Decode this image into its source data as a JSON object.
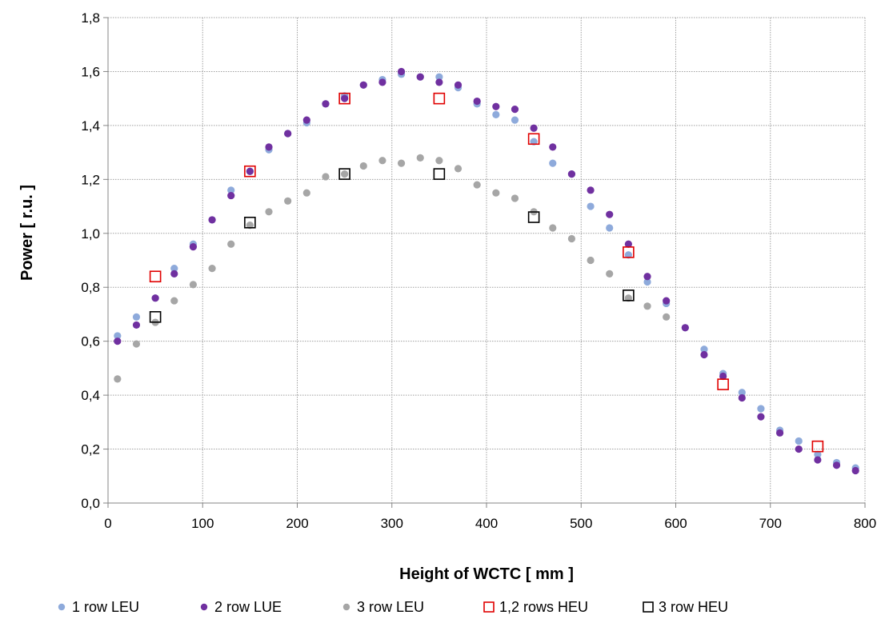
{
  "chart_data": {
    "type": "scatter",
    "title": "",
    "xlabel": "Height of WCTC [ mm ]",
    "ylabel": "Power  [ r.u. ]",
    "xlim": [
      0,
      800
    ],
    "ylim": [
      0,
      1.8
    ],
    "x_ticks": [
      "0",
      "100",
      "200",
      "300",
      "400",
      "500",
      "600",
      "700",
      "800"
    ],
    "y_ticks": [
      "0,0",
      "0,2",
      "0,4",
      "0,6",
      "0,8",
      "1,0",
      "1,2",
      "1,4",
      "1,6",
      "1,8"
    ],
    "grid": true,
    "legend_position": "bottom",
    "series": [
      {
        "name": "1 row LEU",
        "marker": "circle",
        "color": "#8eaadb",
        "x": [
          10,
          30,
          50,
          70,
          90,
          110,
          130,
          150,
          170,
          190,
          210,
          230,
          250,
          270,
          290,
          310,
          330,
          350,
          370,
          390,
          410,
          430,
          450,
          470,
          490,
          510,
          530,
          550,
          570,
          590,
          610,
          630,
          650,
          670,
          690,
          710,
          730,
          750,
          770,
          790
        ],
        "y": [
          0.62,
          0.69,
          0.76,
          0.87,
          0.96,
          1.05,
          1.16,
          1.23,
          1.31,
          1.37,
          1.41,
          1.48,
          1.51,
          1.55,
          1.57,
          1.59,
          1.58,
          1.58,
          1.54,
          1.48,
          1.44,
          1.42,
          1.34,
          1.26,
          1.22,
          1.1,
          1.02,
          0.92,
          0.82,
          0.74,
          0.65,
          0.57,
          0.48,
          0.41,
          0.35,
          0.27,
          0.23,
          0.18,
          0.15,
          0.13
        ]
      },
      {
        "name": "2 row LUE",
        "marker": "circle",
        "color": "#7030a0",
        "x": [
          10,
          30,
          50,
          70,
          90,
          110,
          130,
          150,
          170,
          190,
          210,
          230,
          250,
          270,
          290,
          310,
          330,
          350,
          370,
          390,
          410,
          430,
          450,
          470,
          490,
          510,
          530,
          550,
          570,
          590,
          610,
          630,
          650,
          670,
          690,
          710,
          730,
          750,
          770,
          790
        ],
        "y": [
          0.6,
          0.66,
          0.76,
          0.85,
          0.95,
          1.05,
          1.14,
          1.23,
          1.32,
          1.37,
          1.42,
          1.48,
          1.5,
          1.55,
          1.56,
          1.6,
          1.58,
          1.56,
          1.55,
          1.49,
          1.47,
          1.46,
          1.39,
          1.32,
          1.22,
          1.16,
          1.07,
          0.96,
          0.84,
          0.75,
          0.65,
          0.55,
          0.47,
          0.39,
          0.32,
          0.26,
          0.2,
          0.16,
          0.14,
          0.12
        ]
      },
      {
        "name": "3 row LEU",
        "marker": "circle",
        "color": "#a6a6a6",
        "x": [
          10,
          30,
          50,
          70,
          90,
          110,
          130,
          150,
          170,
          190,
          210,
          230,
          250,
          270,
          290,
          310,
          330,
          350,
          370,
          390,
          410,
          430,
          450,
          470,
          490,
          510,
          530,
          550,
          570,
          590
        ],
        "y": [
          0.46,
          0.59,
          0.67,
          0.75,
          0.81,
          0.87,
          0.96,
          1.03,
          1.08,
          1.12,
          1.15,
          1.21,
          1.22,
          1.25,
          1.27,
          1.26,
          1.28,
          1.27,
          1.24,
          1.18,
          1.15,
          1.13,
          1.08,
          1.02,
          0.98,
          0.9,
          0.85,
          0.76,
          0.73,
          0.69
        ]
      },
      {
        "name": "1,2 rows HEU",
        "marker": "square-open",
        "color": "#e00000",
        "x": [
          50,
          150,
          250,
          350,
          450,
          550,
          650,
          750
        ],
        "y": [
          0.84,
          1.23,
          1.5,
          1.5,
          1.35,
          0.93,
          0.44,
          0.21
        ]
      },
      {
        "name": "3 row HEU",
        "marker": "square-open",
        "color": "#000000",
        "x": [
          50,
          150,
          250,
          350,
          450,
          550
        ],
        "y": [
          0.69,
          1.04,
          1.22,
          1.22,
          1.06,
          0.77
        ]
      }
    ]
  }
}
